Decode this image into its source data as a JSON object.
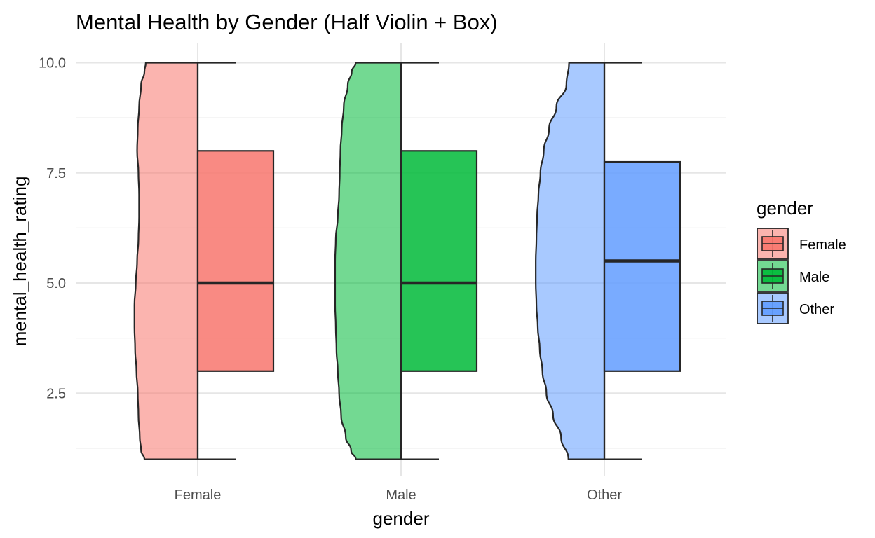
{
  "chart_data": {
    "type": "violin-box",
    "title": "Mental Health by Gender (Half Violin + Box)",
    "xlabel": "gender",
    "ylabel": "mental_health_rating",
    "categories": [
      "Female",
      "Male",
      "Other"
    ],
    "ylim": [
      0.7,
      10.5
    ],
    "y_ticks": [
      2.5,
      5.0,
      7.5,
      10.0
    ],
    "y_tick_labels": [
      "2.5",
      "5.0",
      "7.5",
      "10.0"
    ],
    "grid": true,
    "legend": {
      "title": "gender",
      "position": "right",
      "entries": [
        "Female",
        "Male",
        "Other"
      ]
    },
    "colors": {
      "Female": "#f8766d",
      "Male": "#00ba38",
      "Other": "#619cff"
    },
    "boxplots": [
      {
        "name": "Female",
        "min": 1,
        "q1": 3,
        "median": 5,
        "q3": 8,
        "max": 10
      },
      {
        "name": "Male",
        "min": 1,
        "q1": 3,
        "median": 5,
        "q3": 8,
        "max": 10
      },
      {
        "name": "Other",
        "min": 1,
        "q1": 3,
        "median": 5.5,
        "q3": 7.75,
        "max": 10
      }
    ],
    "violins": [
      {
        "name": "Female",
        "density": [
          [
            1.0,
            0.8
          ],
          [
            1.2,
            0.85
          ],
          [
            1.5,
            0.87
          ],
          [
            2.0,
            0.89
          ],
          [
            2.5,
            0.9
          ],
          [
            3.0,
            0.92
          ],
          [
            3.5,
            0.94
          ],
          [
            4.0,
            0.95
          ],
          [
            4.5,
            0.95
          ],
          [
            5.0,
            0.93
          ],
          [
            5.5,
            0.91
          ],
          [
            6.0,
            0.89
          ],
          [
            6.5,
            0.88
          ],
          [
            7.0,
            0.88
          ],
          [
            7.5,
            0.89
          ],
          [
            8.0,
            0.91
          ],
          [
            8.5,
            0.9
          ],
          [
            9.0,
            0.88
          ],
          [
            9.5,
            0.85
          ],
          [
            9.8,
            0.8
          ],
          [
            10.0,
            0.78
          ]
        ]
      },
      {
        "name": "Male",
        "density": [
          [
            1.0,
            0.68
          ],
          [
            1.2,
            0.75
          ],
          [
            1.5,
            0.83
          ],
          [
            2.0,
            0.9
          ],
          [
            2.5,
            0.93
          ],
          [
            3.0,
            0.95
          ],
          [
            3.5,
            0.97
          ],
          [
            4.0,
            0.98
          ],
          [
            4.5,
            0.99
          ],
          [
            5.0,
            0.99
          ],
          [
            5.5,
            0.99
          ],
          [
            6.0,
            0.98
          ],
          [
            6.5,
            0.95
          ],
          [
            7.0,
            0.93
          ],
          [
            7.5,
            0.92
          ],
          [
            8.0,
            0.91
          ],
          [
            8.5,
            0.89
          ],
          [
            9.0,
            0.86
          ],
          [
            9.5,
            0.8
          ],
          [
            9.8,
            0.74
          ],
          [
            10.0,
            0.68
          ]
        ]
      },
      {
        "name": "Other",
        "density": [
          [
            1.0,
            0.54
          ],
          [
            1.5,
            0.65
          ],
          [
            2.0,
            0.77
          ],
          [
            2.5,
            0.87
          ],
          [
            3.0,
            0.93
          ],
          [
            3.5,
            0.97
          ],
          [
            4.0,
            1.0
          ],
          [
            4.5,
            1.02
          ],
          [
            5.0,
            1.03
          ],
          [
            5.5,
            1.03
          ],
          [
            6.0,
            1.02
          ],
          [
            6.5,
            1.01
          ],
          [
            7.0,
            0.99
          ],
          [
            7.5,
            0.96
          ],
          [
            8.0,
            0.91
          ],
          [
            8.5,
            0.83
          ],
          [
            9.0,
            0.72
          ],
          [
            9.5,
            0.57
          ],
          [
            10.0,
            0.53
          ]
        ]
      }
    ]
  }
}
